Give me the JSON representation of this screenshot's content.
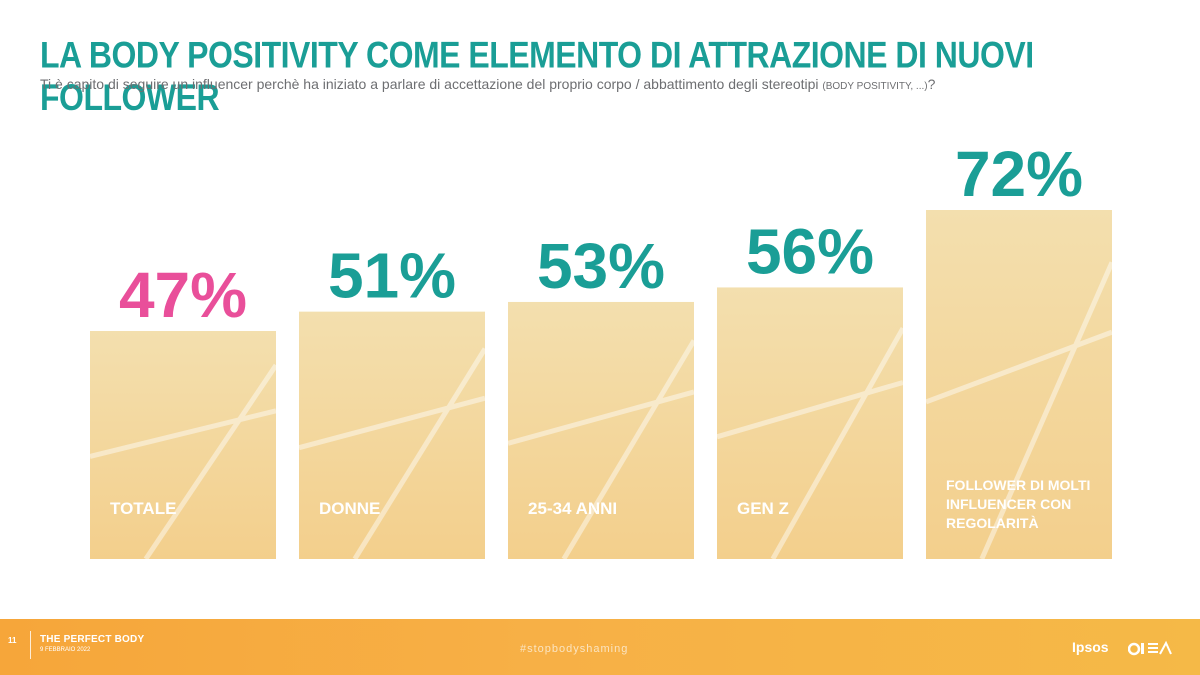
{
  "header": {
    "title": "LA BODY POSITIVITY COME ELEMENTO DI ATTRAZIONE DI NUOVI FOLLOWER",
    "question": "Ti è capito di seguire un influencer perchè ha iniziato a parlare di accettazione del proprio corpo / abbattimento degli stereotipi",
    "question_note": "(BODY POSITIVITY, ...)",
    "question_end": "?"
  },
  "chart_data": {
    "type": "bar",
    "categories": [
      "TOTALE",
      "DONNE",
      "25-34 ANNI",
      "GEN Z",
      "FOLLOWER DI MOLTI INFLUENCER CON REGOLARITÀ"
    ],
    "values": [
      47,
      51,
      53,
      56,
      72
    ],
    "value_labels": [
      "47%",
      "51%",
      "53%",
      "56%",
      "72%"
    ],
    "title": "",
    "xlabel": "",
    "ylabel": "",
    "ylim": [
      0,
      100
    ],
    "grid": false,
    "legend": "none",
    "colors": {
      "total_value": "#e94f9a",
      "value": "#1a9e96",
      "category_label": "#ffffff",
      "bar_fill": "#f4d8a0"
    }
  },
  "footer": {
    "page_number": "11",
    "title": "THE PERFECT BODY",
    "date": "9 FEBBRAIO 2022",
    "hashtag": "#stopbodyshaming",
    "logo": "Ipsos",
    "partner_logo_icon": "partner-logo-icon"
  }
}
